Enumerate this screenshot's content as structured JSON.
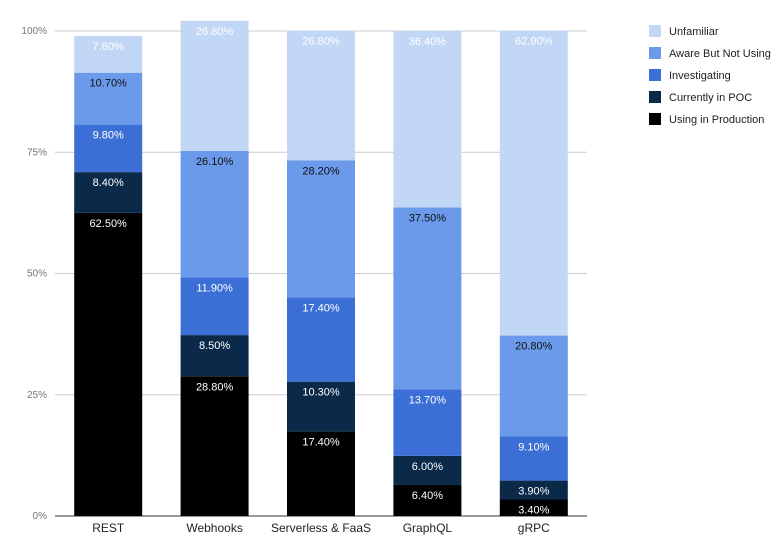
{
  "chart_data": {
    "type": "bar",
    "stacked": true,
    "percent": true,
    "categories": [
      "REST",
      "Webhooks",
      "Serverless & FaaS",
      "GraphQL",
      "gRPC"
    ],
    "series": [
      {
        "name": "Using in Production",
        "color": "#000000",
        "label_color": "#ffffff",
        "values": [
          62.5,
          28.8,
          17.4,
          6.4,
          3.4
        ],
        "labels": [
          "62.50%",
          "28.80%",
          "17.40%",
          "6.40%",
          "3.40%"
        ]
      },
      {
        "name": "Currently in POC",
        "color": "#0b2a4a",
        "label_color": "#ffffff",
        "values": [
          8.4,
          8.5,
          10.3,
          6.0,
          3.9
        ],
        "labels": [
          "8.40%",
          "8.50%",
          "10.30%",
          "6.00%",
          "3.90%"
        ]
      },
      {
        "name": "Investigating",
        "color": "#3c6fd6",
        "label_color": "#ffffff",
        "values": [
          9.8,
          11.9,
          17.4,
          13.7,
          9.1
        ],
        "labels": [
          "9.80%",
          "11.90%",
          "17.40%",
          "13.70%",
          "9.10%"
        ]
      },
      {
        "name": "Aware But Not Using",
        "color": "#6a9ae9",
        "label_color": "#111111",
        "values": [
          10.7,
          26.1,
          28.2,
          37.5,
          20.8
        ],
        "labels": [
          "10.70%",
          "26.10%",
          "28.20%",
          "37.50%",
          "20.80%"
        ]
      },
      {
        "name": "Unfamiliar",
        "color": "#c2d7f5",
        "label_color": "#ffffff",
        "values": [
          7.6,
          26.8,
          26.8,
          36.4,
          62.9
        ],
        "labels": [
          "7.60%",
          "26.80%",
          "26.80%",
          "36.40%",
          "62.90%"
        ]
      }
    ],
    "y_ticks": [
      "0%",
      "25%",
      "50%",
      "75%",
      "100%"
    ],
    "ylim": [
      0,
      100
    ],
    "legend_order": [
      "Unfamiliar",
      "Aware But Not Using",
      "Investigating",
      "Currently in POC",
      "Using in Production"
    ],
    "legend_position": "top-right",
    "grid": true
  }
}
